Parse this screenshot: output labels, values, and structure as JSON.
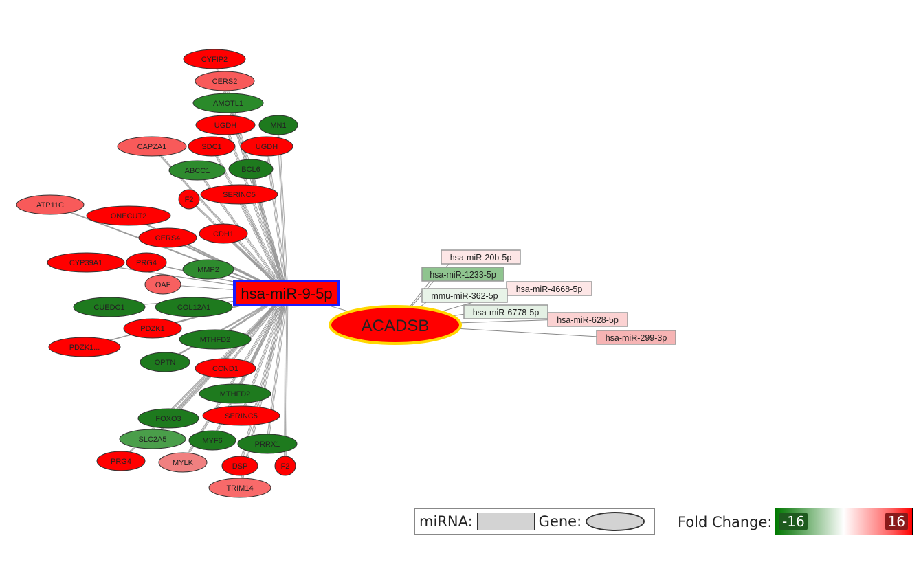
{
  "hub": {
    "label": "hsa-miR-9-5p",
    "fill": "#ff0000",
    "border": "#1a1aff"
  },
  "target": {
    "label": "ACADSB",
    "fill": "#ff0000",
    "border": "#ffd700"
  },
  "genes": [
    {
      "label": "CYFIP2",
      "fill": "#ff0000"
    },
    {
      "label": "CERS2",
      "fill": "#f85a5a"
    },
    {
      "label": "AMOTL1",
      "fill": "#2a8a2a"
    },
    {
      "label": "UGDH",
      "fill": "#ff0000"
    },
    {
      "label": "MN1",
      "fill": "#1e7a1e"
    },
    {
      "label": "CAPZA1",
      "fill": "#f85a5a"
    },
    {
      "label": "SDC1",
      "fill": "#ff0000"
    },
    {
      "label": "UGDH",
      "fill": "#ff0000"
    },
    {
      "label": "ABCC1",
      "fill": "#2e8b2e"
    },
    {
      "label": "BCL6",
      "fill": "#1e7a1e"
    },
    {
      "label": "F2",
      "fill": "#ff0000"
    },
    {
      "label": "SERINC5",
      "fill": "#ff0000"
    },
    {
      "label": "ATP11C",
      "fill": "#f85a5a"
    },
    {
      "label": "ONECUT2",
      "fill": "#ff0000"
    },
    {
      "label": "CERS4",
      "fill": "#ff0000"
    },
    {
      "label": "CDH1",
      "fill": "#ff0000"
    },
    {
      "label": "CYP39A1",
      "fill": "#ff0000"
    },
    {
      "label": "PRG4",
      "fill": "#ff0000"
    },
    {
      "label": "MMP2",
      "fill": "#2e8b2e"
    },
    {
      "label": "OAF",
      "fill": "#f86060"
    },
    {
      "label": "CUEDC1",
      "fill": "#1e7a1e"
    },
    {
      "label": "COL12A1",
      "fill": "#1e7a1e"
    },
    {
      "label": "PDZK1",
      "fill": "#ff0000"
    },
    {
      "label": "PDZK1...",
      "fill": "#ff0000"
    },
    {
      "label": "MTHFD2",
      "fill": "#1e7a1e"
    },
    {
      "label": "OPTN",
      "fill": "#1e7a1e"
    },
    {
      "label": "CCND1",
      "fill": "#ff0000"
    },
    {
      "label": "MTHFD2",
      "fill": "#1e7a1e"
    },
    {
      "label": "FOXO3",
      "fill": "#1e7a1e"
    },
    {
      "label": "SERINC5",
      "fill": "#ff0000"
    },
    {
      "label": "SLC2A5",
      "fill": "#4a9e4a"
    },
    {
      "label": "MYF6",
      "fill": "#1e7a1e"
    },
    {
      "label": "PRRX1",
      "fill": "#1e7a1e"
    },
    {
      "label": "PRG4",
      "fill": "#ff0000"
    },
    {
      "label": "MYLK",
      "fill": "#f08080"
    },
    {
      "label": "DSP",
      "fill": "#ff0000"
    },
    {
      "label": "F2",
      "fill": "#ff0000"
    },
    {
      "label": "TRIM14",
      "fill": "#f86a6a"
    }
  ],
  "mirnas": [
    {
      "label": "hsa-miR-20b-5p",
      "fill": "#fde6e6"
    },
    {
      "label": "hsa-miR-1233-5p",
      "fill": "#8fc48f"
    },
    {
      "label": "hsa-miR-4668-5p",
      "fill": "#fde6e6"
    },
    {
      "label": "mmu-miR-362-5p",
      "fill": "#e8f3e8"
    },
    {
      "label": "hsa-miR-6778-5p",
      "fill": "#e4f0e4"
    },
    {
      "label": "hsa-miR-628-5p",
      "fill": "#fbd2d2"
    },
    {
      "label": "hsa-miR-299-3p",
      "fill": "#f6b4b4"
    }
  ],
  "legend": {
    "mirna_label": "miRNA:",
    "gene_label": "Gene:",
    "fold_change_label": "Fold Change:",
    "min": "-16",
    "max": "16",
    "low_color": "#007a00",
    "high_color": "#ff0000"
  }
}
